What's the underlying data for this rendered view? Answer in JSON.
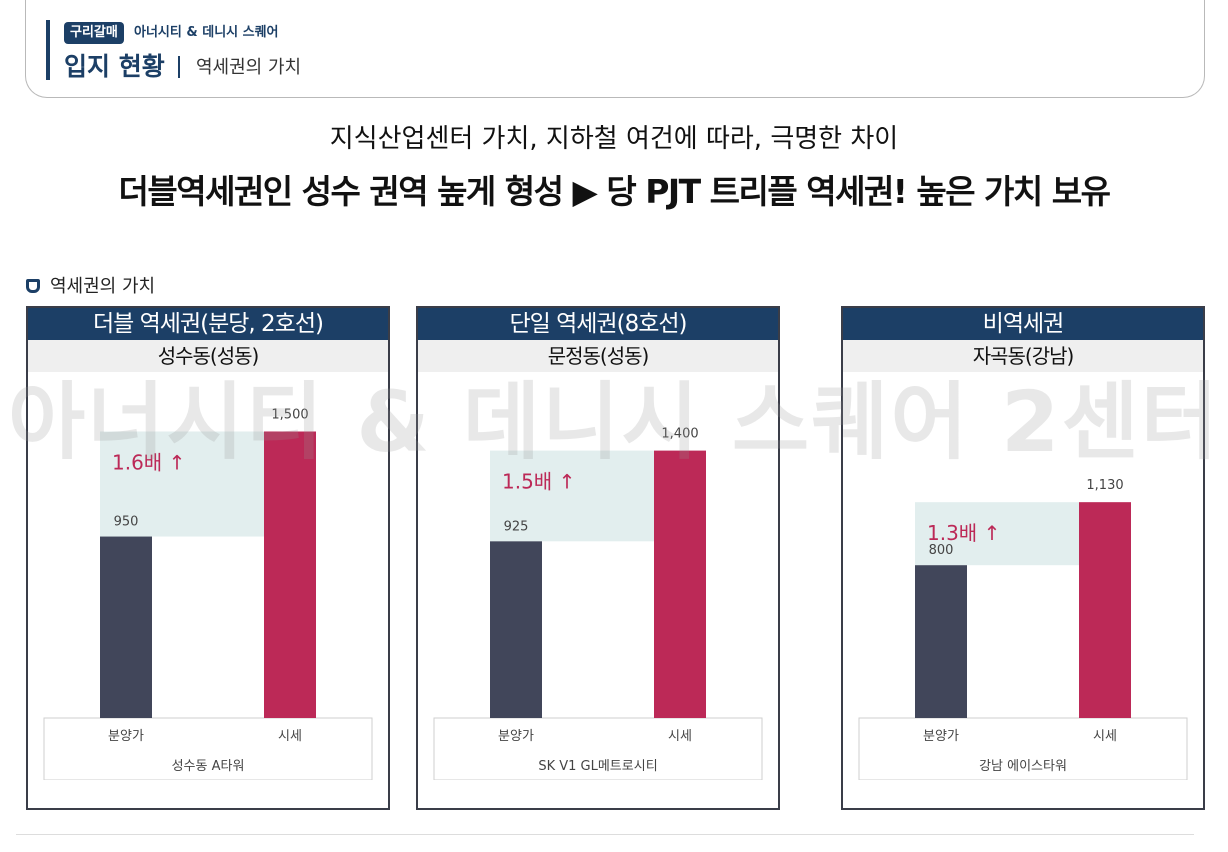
{
  "header": {
    "badge": "구리갈매",
    "project": "아너시티 & 데니시 스퀘어",
    "title": "입지 현황",
    "subtitle": "역세권의 가치"
  },
  "headline": {
    "line1": "지식산업센터 가치, 지하철 여건에 따라, 극명한 차이",
    "line2": "더블역세권인 성수 권역 높게 형성 ▶ 당 PJT 트리플 역세권! 높은 가치 보유"
  },
  "section_label": "역세권의 가치",
  "watermark": "아너시티 & 데니시 스퀘어 2센터",
  "colors": {
    "navy": "#1c3f66",
    "bar_presale": "#41465a",
    "bar_market": "#bc2957",
    "band": "#e2eeee",
    "ratio_text": "#bc2957"
  },
  "chart_data": [
    {
      "type": "bar",
      "panel_title": "더블 역세권(분당, 2호선)",
      "panel_subtitle": "성수동(성동)",
      "building": "성수동 A타워",
      "categories": [
        "분양가",
        "시세"
      ],
      "values": [
        950,
        1500
      ],
      "value_labels": [
        "950",
        "1,500"
      ],
      "ratio_label": "1.6배 ↑",
      "ylim": [
        0,
        1650
      ]
    },
    {
      "type": "bar",
      "panel_title": "단일 역세권(8호선)",
      "panel_subtitle": "문정동(성동)",
      "building": "SK V1 GL메트로시티",
      "categories": [
        "분양가",
        "시세"
      ],
      "values": [
        925,
        1400
      ],
      "value_labels": [
        "925",
        "1,400"
      ],
      "ratio_label": "1.5배 ↑",
      "ylim": [
        0,
        1650
      ]
    },
    {
      "type": "bar",
      "panel_title": "비역세권",
      "panel_subtitle": "자곡동(강남)",
      "building": "강남 에이스타워",
      "categories": [
        "분양가",
        "시세"
      ],
      "values": [
        800,
        1130
      ],
      "value_labels": [
        "800",
        "1,130"
      ],
      "ratio_label": "1.3배 ↑",
      "ylim": [
        0,
        1650
      ]
    }
  ]
}
